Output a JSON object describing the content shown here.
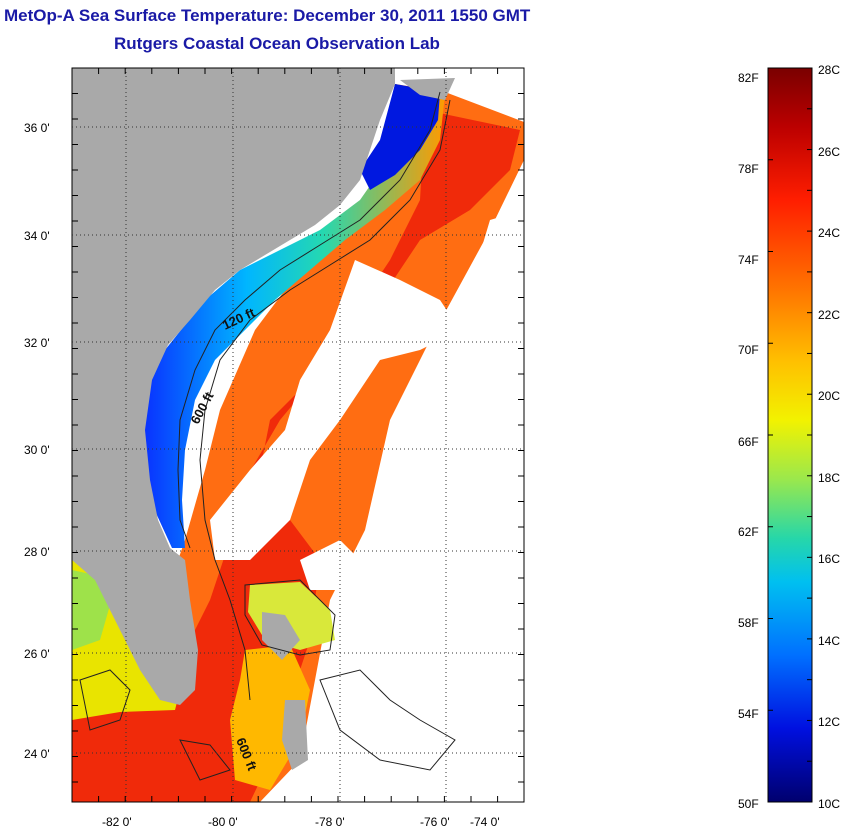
{
  "header": {
    "title": "MetOp-A Sea Surface Temperature:  December 30, 2011 1550 GMT",
    "subtitle": "Rutgers Coastal Ocean Observation Lab"
  },
  "map": {
    "lon_labels": [
      "-82 0'",
      "-80 0'",
      "-78 0'",
      "-76 0'",
      "-74 0'"
    ],
    "lat_labels": [
      "36 0'",
      "34 0'",
      "32 0'",
      "30 0'",
      "28 0'",
      "26 0'",
      "24 0'"
    ],
    "contours": [
      "120 ft",
      "600 ft",
      "600 ft"
    ],
    "colors": {
      "land": "#a9a9a9",
      "no_data": "#ffffff",
      "grid": "#555555"
    }
  },
  "colorbar": {
    "f_labels": [
      "82F",
      "78F",
      "74F",
      "70F",
      "66F",
      "62F",
      "58F",
      "54F",
      "50F"
    ],
    "c_labels": [
      "28C",
      "26C",
      "24C",
      "22C",
      "20C",
      "18C",
      "16C",
      "14C",
      "12C",
      "10C"
    ],
    "range_c": [
      10,
      28
    ],
    "colormap": [
      "#7a0000",
      "#cc0000",
      "#ff2a00",
      "#ff7a00",
      "#ffc400",
      "#f4f400",
      "#8cf04a",
      "#18d9b0",
      "#00b7ff",
      "#0050ff",
      "#0000b4",
      "#00006e"
    ]
  }
}
